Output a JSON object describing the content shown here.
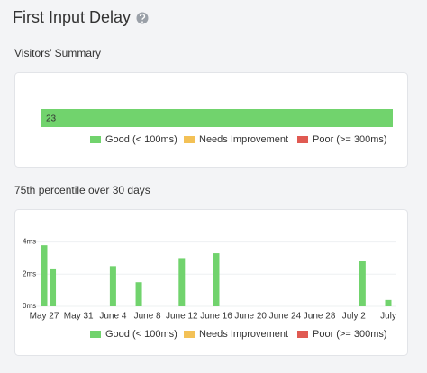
{
  "title": "First Input Delay",
  "chart_data": [
    {
      "type": "bar",
      "orientation": "horizontal",
      "stacked": true,
      "title": "Visitors’ Summary",
      "series": [
        {
          "name": "Good (< 100ms)",
          "color": "#71d36d",
          "values": [
            23
          ]
        },
        {
          "name": "Needs Improvement",
          "color": "#f3c156",
          "values": [
            0
          ]
        },
        {
          "name": "Poor (>= 300ms)",
          "color": "#e05a52",
          "values": [
            0
          ]
        }
      ],
      "xlim": [
        0,
        23
      ]
    },
    {
      "type": "bar",
      "title": "75th percentile over 30 days",
      "categories": [
        "May 27",
        null,
        null,
        null,
        "May 31",
        null,
        null,
        null,
        "June 4",
        null,
        null,
        null,
        "June 8",
        null,
        null,
        null,
        "June 12",
        null,
        null,
        null,
        "June 16",
        null,
        null,
        null,
        "June 20",
        null,
        null,
        null,
        "June 24",
        null,
        null,
        null,
        "June 28",
        null,
        null,
        null,
        "July 2",
        null,
        null,
        null,
        "July"
      ],
      "series": [
        {
          "name": "Good (< 100ms)",
          "color": "#71d36d",
          "values": [
            3.8,
            2.3,
            null,
            null,
            null,
            null,
            null,
            null,
            2.5,
            null,
            null,
            1.5,
            null,
            null,
            null,
            null,
            3.0,
            null,
            null,
            null,
            3.3,
            null,
            null,
            null,
            null,
            null,
            null,
            null,
            null,
            null,
            null,
            null,
            null,
            null,
            null,
            null,
            null,
            2.8,
            null,
            null,
            0.4
          ]
        },
        {
          "name": "Needs Improvement",
          "color": "#f3c156",
          "values": [
            null,
            null,
            null,
            null,
            null,
            null,
            null,
            null,
            null,
            null,
            null,
            null,
            null,
            null,
            null,
            null,
            null,
            null,
            null,
            null,
            null,
            null,
            null,
            null,
            null,
            null,
            null,
            null,
            null,
            null,
            null,
            null,
            null,
            null,
            null,
            null,
            null,
            null,
            null,
            null,
            null
          ]
        },
        {
          "name": "Poor (>= 300ms)",
          "color": "#e05a52",
          "values": [
            null,
            null,
            null,
            null,
            null,
            null,
            null,
            null,
            null,
            null,
            null,
            null,
            null,
            null,
            null,
            null,
            null,
            null,
            null,
            null,
            null,
            null,
            null,
            null,
            null,
            null,
            null,
            null,
            null,
            null,
            null,
            null,
            null,
            null,
            null,
            null,
            null,
            null,
            null,
            null,
            null
          ]
        }
      ],
      "ylim": [
        0,
        4.2
      ],
      "yticks": [
        {
          "value": 0,
          "label": "0ms"
        },
        {
          "value": 2,
          "label": "2ms"
        },
        {
          "value": 4,
          "label": "4ms"
        }
      ],
      "grid": true
    }
  ]
}
